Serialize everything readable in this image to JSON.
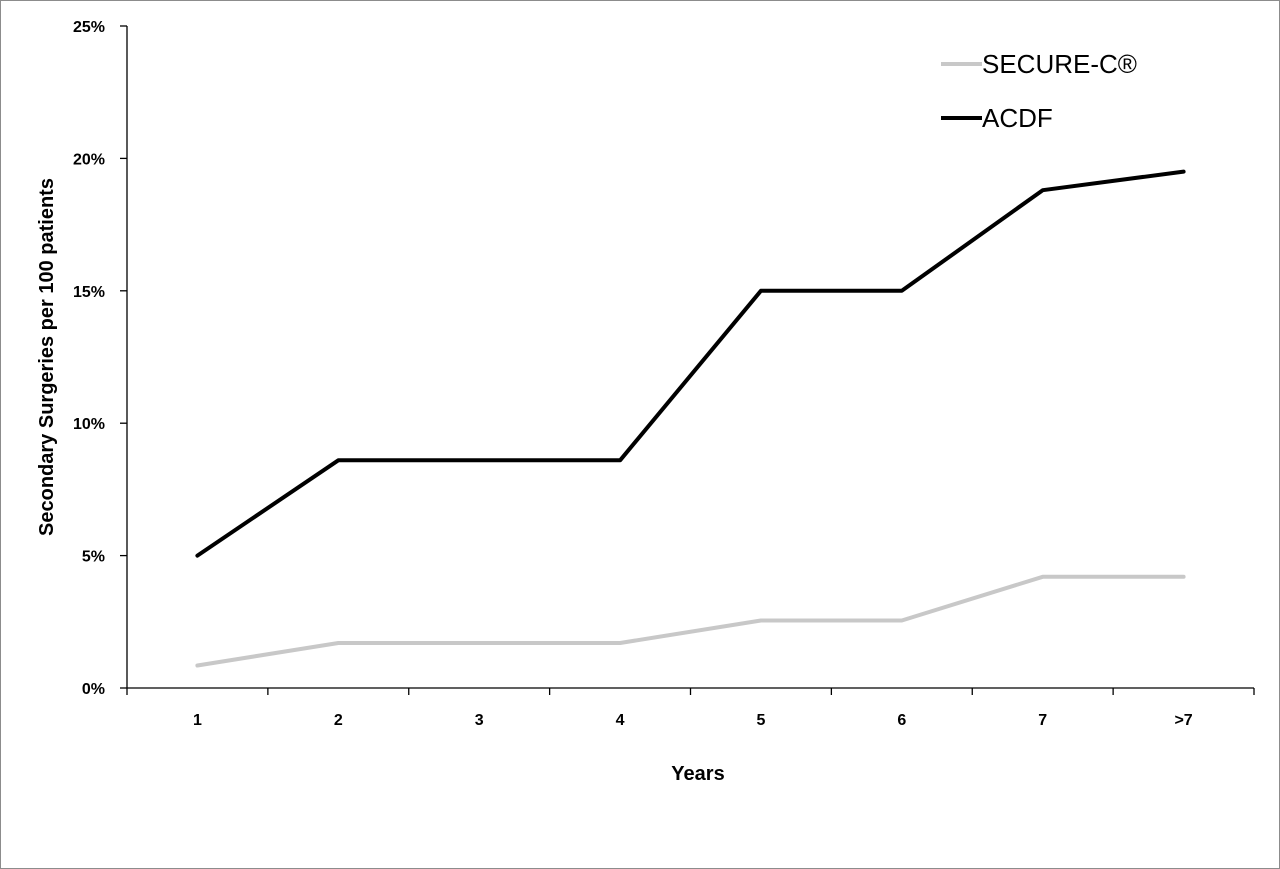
{
  "chart_data": {
    "type": "line",
    "title": "",
    "xlabel": "Years",
    "ylabel": "Secondary Surgeries per 100 patients",
    "categories": [
      "1",
      "2",
      "3",
      "4",
      "5",
      "6",
      "7",
      ">7"
    ],
    "ylim": [
      0,
      25
    ],
    "yticks": [
      "0%",
      "5%",
      "10%",
      "15%",
      "20%",
      "25%"
    ],
    "ytick_values": [
      0,
      5,
      10,
      15,
      20,
      25
    ],
    "grid": false,
    "legend_position": "top-right",
    "series": [
      {
        "name": "SECURE-C®",
        "color": "#c8c8c8",
        "values": [
          0.85,
          1.7,
          1.7,
          1.7,
          2.55,
          2.55,
          4.2,
          4.2
        ]
      },
      {
        "name": "ACDF",
        "color": "#000000",
        "values": [
          5.0,
          8.6,
          8.6,
          8.6,
          15.0,
          15.0,
          18.8,
          19.5
        ]
      }
    ]
  }
}
